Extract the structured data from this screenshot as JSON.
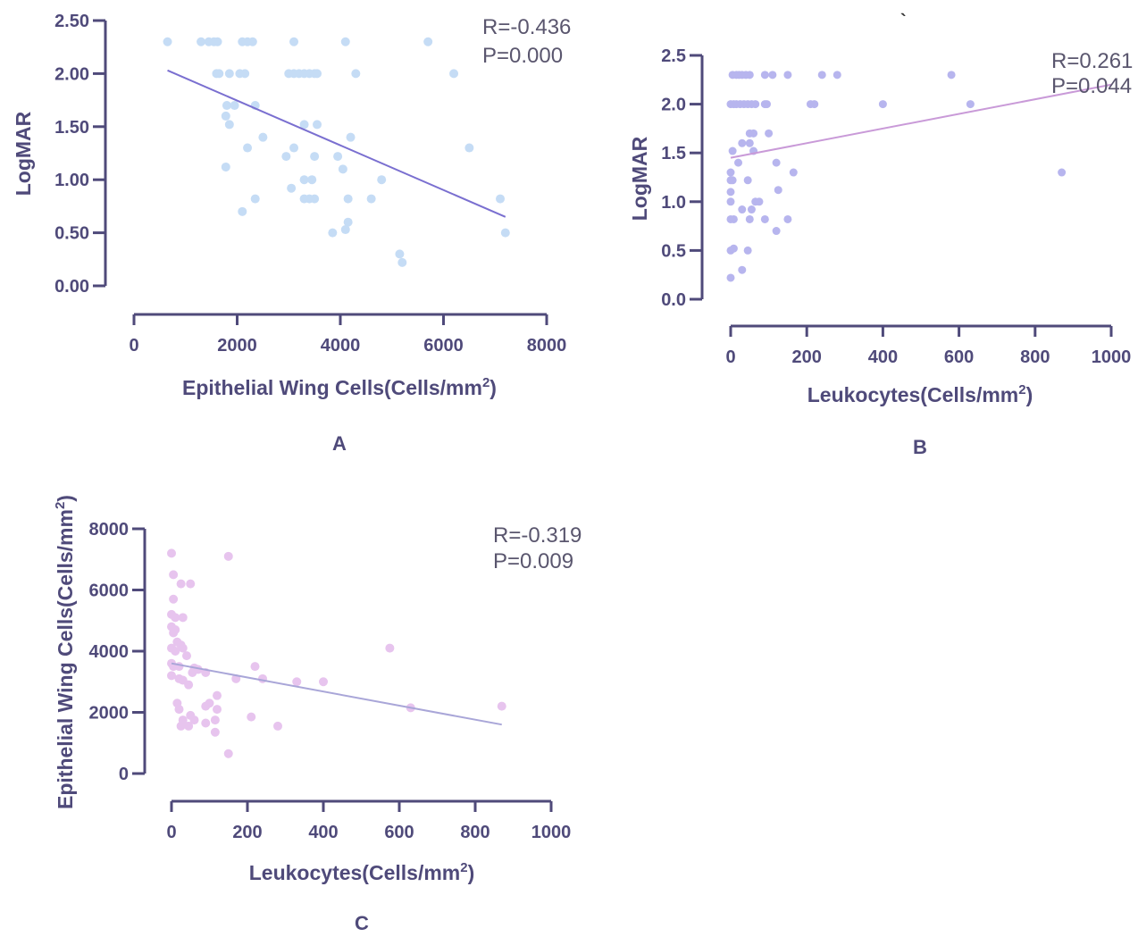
{
  "chart_data": [
    {
      "id": "A",
      "type": "scatter",
      "panel_label": "A",
      "xlabel": "Epithelial Wing Cells(Cells/mm",
      "xlabel_sup": "2",
      "xlabel_end": ")",
      "ylabel": "LogMAR",
      "xlim": [
        0,
        8000
      ],
      "ylim": [
        0,
        2.5
      ],
      "xticks": [
        0,
        2000,
        4000,
        6000,
        8000
      ],
      "xtick_labels": [
        "0",
        "2000",
        "4000",
        "6000",
        "8000"
      ],
      "yticks": [
        0,
        0.5,
        1.0,
        1.5,
        2.0,
        2.5
      ],
      "ytick_labels": [
        "0.00",
        "0.50",
        "1.00",
        "1.50",
        "2.00",
        "2.50"
      ],
      "stat_r": "R=-0.436",
      "stat_p": "P=0.000",
      "point_color": "#c5dcf5",
      "line_color": "#7a6fd0",
      "fit": {
        "x": [
          650,
          7200
        ],
        "y": [
          2.03,
          0.65
        ]
      },
      "points": [
        [
          650,
          2.3
        ],
        [
          1300,
          2.3
        ],
        [
          1450,
          2.3
        ],
        [
          1550,
          2.3
        ],
        [
          1620,
          2.3
        ],
        [
          2100,
          2.3
        ],
        [
          2200,
          2.3
        ],
        [
          2300,
          2.3
        ],
        [
          3100,
          2.3
        ],
        [
          4100,
          2.3
        ],
        [
          5700,
          2.3
        ],
        [
          1600,
          2.0
        ],
        [
          1650,
          2.0
        ],
        [
          1850,
          2.0
        ],
        [
          2050,
          2.0
        ],
        [
          2150,
          2.0
        ],
        [
          3000,
          2.0
        ],
        [
          3100,
          2.0
        ],
        [
          3200,
          2.0
        ],
        [
          3300,
          2.0
        ],
        [
          3400,
          2.0
        ],
        [
          3500,
          2.0
        ],
        [
          3550,
          2.0
        ],
        [
          4300,
          2.0
        ],
        [
          6200,
          2.0
        ],
        [
          1800,
          1.7
        ],
        [
          1950,
          1.7
        ],
        [
          2350,
          1.7
        ],
        [
          1780,
          1.6
        ],
        [
          1850,
          1.52
        ],
        [
          3300,
          1.52
        ],
        [
          3550,
          1.52
        ],
        [
          2500,
          1.4
        ],
        [
          4200,
          1.4
        ],
        [
          2200,
          1.3
        ],
        [
          3100,
          1.3
        ],
        [
          6500,
          1.3
        ],
        [
          2950,
          1.22
        ],
        [
          3500,
          1.22
        ],
        [
          3950,
          1.22
        ],
        [
          1780,
          1.12
        ],
        [
          4050,
          1.1
        ],
        [
          3300,
          1.0
        ],
        [
          3450,
          1.0
        ],
        [
          4800,
          1.0
        ],
        [
          3050,
          0.92
        ],
        [
          2350,
          0.82
        ],
        [
          3300,
          0.82
        ],
        [
          3400,
          0.82
        ],
        [
          3500,
          0.82
        ],
        [
          4150,
          0.82
        ],
        [
          4600,
          0.82
        ],
        [
          7100,
          0.82
        ],
        [
          2100,
          0.7
        ],
        [
          4150,
          0.6
        ],
        [
          3850,
          0.5
        ],
        [
          4100,
          0.53
        ],
        [
          7200,
          0.5
        ],
        [
          5150,
          0.3
        ],
        [
          5200,
          0.22
        ]
      ]
    },
    {
      "id": "B",
      "type": "scatter",
      "panel_label": "B",
      "xlabel": "Leukocytes(Cells/mm",
      "xlabel_sup": "2",
      "xlabel_end": ")",
      "ylabel": "LogMAR",
      "xlim": [
        0,
        1000
      ],
      "ylim": [
        0,
        2.5
      ],
      "xticks": [
        0,
        200,
        400,
        600,
        800,
        1000
      ],
      "xtick_labels": [
        "0",
        "200",
        "400",
        "600",
        "800",
        "1000"
      ],
      "yticks": [
        0,
        0.5,
        1.0,
        1.5,
        2.0,
        2.5
      ],
      "ytick_labels": [
        "0.0",
        "0.5",
        "1.0",
        "1.5",
        "2.0",
        "2.5"
      ],
      "stat_r": "R=0.261",
      "stat_p": "P=0.044",
      "point_color": "#b7b5ee",
      "line_color": "#c99ad8",
      "fit": {
        "x": [
          0,
          1000
        ],
        "y": [
          1.45,
          2.2
        ]
      },
      "points": [
        [
          5,
          2.3
        ],
        [
          15,
          2.3
        ],
        [
          22,
          2.3
        ],
        [
          30,
          2.3
        ],
        [
          40,
          2.3
        ],
        [
          50,
          2.3
        ],
        [
          90,
          2.3
        ],
        [
          110,
          2.3
        ],
        [
          150,
          2.3
        ],
        [
          240,
          2.3
        ],
        [
          280,
          2.3
        ],
        [
          580,
          2.3
        ],
        [
          0,
          2.0
        ],
        [
          8,
          2.0
        ],
        [
          15,
          2.0
        ],
        [
          25,
          2.0
        ],
        [
          35,
          2.0
        ],
        [
          45,
          2.0
        ],
        [
          55,
          2.0
        ],
        [
          65,
          2.0
        ],
        [
          90,
          2.0
        ],
        [
          95,
          2.0
        ],
        [
          210,
          2.0
        ],
        [
          220,
          2.0
        ],
        [
          400,
          2.0
        ],
        [
          630,
          2.0
        ],
        [
          50,
          1.7
        ],
        [
          60,
          1.7
        ],
        [
          100,
          1.7
        ],
        [
          50,
          1.6
        ],
        [
          30,
          1.6
        ],
        [
          5,
          1.52
        ],
        [
          60,
          1.52
        ],
        [
          20,
          1.4
        ],
        [
          120,
          1.4
        ],
        [
          0,
          1.3
        ],
        [
          165,
          1.3
        ],
        [
          870,
          1.3
        ],
        [
          0,
          1.22
        ],
        [
          5,
          1.22
        ],
        [
          45,
          1.22
        ],
        [
          0,
          1.1
        ],
        [
          125,
          1.12
        ],
        [
          0,
          1.0
        ],
        [
          65,
          1.0
        ],
        [
          75,
          1.0
        ],
        [
          30,
          0.92
        ],
        [
          55,
          0.92
        ],
        [
          0,
          0.82
        ],
        [
          8,
          0.82
        ],
        [
          50,
          0.82
        ],
        [
          90,
          0.82
        ],
        [
          150,
          0.82
        ],
        [
          120,
          0.7
        ],
        [
          0,
          0.5
        ],
        [
          8,
          0.52
        ],
        [
          45,
          0.5
        ],
        [
          30,
          0.3
        ],
        [
          0,
          0.22
        ]
      ]
    },
    {
      "id": "C",
      "type": "scatter",
      "panel_label": "C",
      "xlabel": "Leukocytes(Cells/mm",
      "xlabel_sup": "2",
      "xlabel_end": ")",
      "ylabel": "Epithelial Wing Cells(Cells/mm",
      "ylabel_sup": "2",
      "ylabel_end": ")",
      "xlim": [
        0,
        1000
      ],
      "ylim": [
        0,
        8000
      ],
      "xticks": [
        0,
        200,
        400,
        600,
        800,
        1000
      ],
      "xtick_labels": [
        "0",
        "200",
        "400",
        "600",
        "800",
        "1000"
      ],
      "yticks": [
        0,
        2000,
        4000,
        6000,
        8000
      ],
      "ytick_labels": [
        "0",
        "2000",
        "4000",
        "6000",
        "8000"
      ],
      "stat_r": "R=-0.319",
      "stat_p": "P=0.009",
      "point_color": "#e7c4ee",
      "line_color": "#a9a6d8",
      "fit": {
        "x": [
          0,
          870
        ],
        "y": [
          3600,
          1600
        ]
      },
      "points": [
        [
          0,
          7200
        ],
        [
          150,
          7100
        ],
        [
          5,
          6500
        ],
        [
          25,
          6200
        ],
        [
          50,
          6200
        ],
        [
          5,
          5700
        ],
        [
          0,
          5200
        ],
        [
          10,
          5100
        ],
        [
          30,
          5100
        ],
        [
          0,
          4800
        ],
        [
          10,
          4700
        ],
        [
          5,
          4600
        ],
        [
          15,
          4300
        ],
        [
          25,
          4200
        ],
        [
          30,
          4100
        ],
        [
          0,
          4100
        ],
        [
          10,
          4000
        ],
        [
          40,
          3850
        ],
        [
          575,
          4100
        ],
        [
          0,
          3600
        ],
        [
          5,
          3500
        ],
        [
          20,
          3500
        ],
        [
          60,
          3450
        ],
        [
          70,
          3400
        ],
        [
          220,
          3500
        ],
        [
          55,
          3300
        ],
        [
          90,
          3300
        ],
        [
          0,
          3200
        ],
        [
          20,
          3100
        ],
        [
          30,
          3050
        ],
        [
          45,
          2900
        ],
        [
          170,
          3100
        ],
        [
          240,
          3100
        ],
        [
          330,
          3000
        ],
        [
          400,
          3000
        ],
        [
          15,
          2300
        ],
        [
          90,
          2200
        ],
        [
          100,
          2300
        ],
        [
          120,
          2550
        ],
        [
          20,
          2100
        ],
        [
          120,
          2100
        ],
        [
          870,
          2200
        ],
        [
          630,
          2150
        ],
        [
          210,
          1850
        ],
        [
          50,
          1900
        ],
        [
          30,
          1750
        ],
        [
          60,
          1750
        ],
        [
          90,
          1650
        ],
        [
          115,
          1750
        ],
        [
          25,
          1550
        ],
        [
          45,
          1550
        ],
        [
          280,
          1550
        ],
        [
          115,
          1350
        ],
        [
          150,
          650
        ]
      ]
    }
  ],
  "stray_mark": "`"
}
